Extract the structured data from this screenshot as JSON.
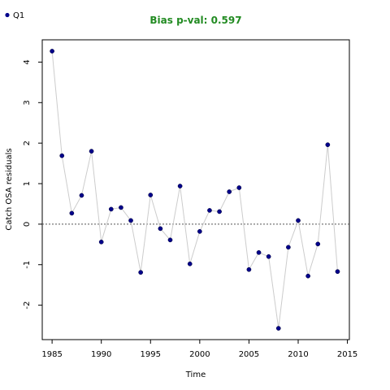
{
  "chart_data": {
    "type": "line",
    "title": "Bias p-val: 0.597",
    "title_color": "#228B22",
    "xlabel": "Time",
    "ylabel": "Catch OSA residuals",
    "xlim": [
      1984,
      2015.2
    ],
    "ylim": [
      -2.85,
      4.55
    ],
    "xticks": [
      "1985",
      "1990",
      "1995",
      "2000",
      "2005",
      "2010",
      "2015"
    ],
    "yticks": [
      "4",
      "3",
      "2",
      "1",
      "0",
      "-1",
      "-2"
    ],
    "reference_line_y": 0,
    "grid": false,
    "legend_position": "top-left",
    "series": [
      {
        "name": "Q1",
        "point_color": "#00008B",
        "line_color": "#CCCCCC",
        "x": [
          1985,
          1986,
          1987,
          1988,
          1989,
          1990,
          1991,
          1992,
          1993,
          1994,
          1995,
          1996,
          1997,
          1998,
          1999,
          2000,
          2001,
          2002,
          2003,
          2004,
          2005,
          2006,
          2007,
          2008,
          2009,
          2010,
          2011,
          2012,
          2013,
          2014
        ],
        "y": [
          4.27,
          1.69,
          0.27,
          0.71,
          1.8,
          -0.44,
          0.37,
          0.41,
          0.09,
          -1.19,
          0.72,
          -0.11,
          -0.39,
          0.94,
          -0.98,
          -0.18,
          0.34,
          0.31,
          0.8,
          0.9,
          -1.12,
          -0.7,
          -0.8,
          -2.57,
          -0.57,
          0.09,
          -1.28,
          -0.49,
          1.96,
          -1.17
        ]
      }
    ]
  }
}
